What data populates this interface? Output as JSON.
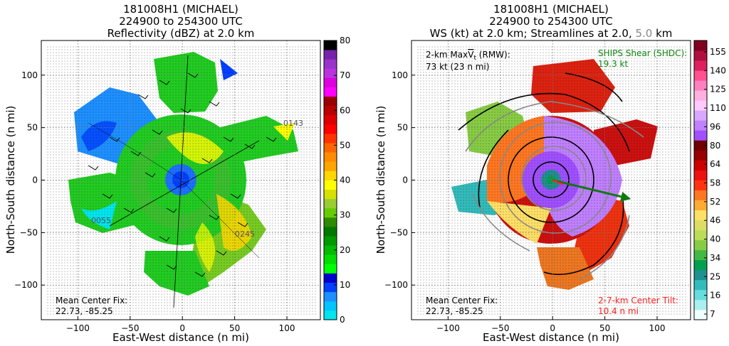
{
  "chart_data": [
    {
      "type": "heatmap",
      "title_lines": [
        "181008H1 (MICHAEL)",
        "224900 to 254300 UTC",
        "Reflectivity (dBZ) at 2.0 km"
      ],
      "xlabel": "East-West distance (n mi)",
      "ylabel": "North-South distance (n mi)",
      "xlim": [
        -135,
        132
      ],
      "ylim": [
        -133,
        133
      ],
      "xticks": [
        -100,
        -50,
        0,
        50,
        100
      ],
      "yticks": [
        -100,
        -50,
        0,
        50,
        100
      ],
      "grid": true,
      "colorbar": {
        "min": 0,
        "max": 80,
        "ticks": [
          0,
          10,
          20,
          30,
          40,
          50,
          60,
          70,
          80
        ],
        "colors": [
          "#00e5ee",
          "#00c5ff",
          "#1e90ff",
          "#0040ff",
          "#0000cd",
          "#00ff00",
          "#00dd00",
          "#00bb00",
          "#009900",
          "#007700",
          "#2e8b00",
          "#66cc00",
          "#9acd32",
          "#d7e000",
          "#ffff00",
          "#ffd700",
          "#ffa500",
          "#ff8c00",
          "#ff6600",
          "#ff3300",
          "#ff0000",
          "#dd0000",
          "#bb0000",
          "#990000",
          "#ff00ff",
          "#dd00dd",
          "#bb33dd",
          "#9933cc",
          "#7722aa",
          "#000000"
        ]
      },
      "flight_labels": [
        "0143",
        "0055",
        "0245"
      ],
      "annotations": {
        "mean_center_label": "Mean Center Fix:",
        "mean_center_value": "22.73, -85.25"
      }
    },
    {
      "type": "heatmap",
      "title_lines": [
        "181008H1 (MICHAEL)",
        "224900 to 254300 UTC",
        "WS (kt) at 2.0 km; Streamlines at 2.0, ",
        "5.0",
        " km"
      ],
      "xlabel": "East-West distance (n mi)",
      "ylabel": "North-South distance (n mi)",
      "xlim": [
        -135,
        132
      ],
      "ylim": [
        -133,
        133
      ],
      "xticks": [
        -100,
        -50,
        0,
        50,
        100
      ],
      "yticks": [
        -100,
        -50,
        0,
        50,
        100
      ],
      "grid": true,
      "colorbar": {
        "tick_labels": [
          "7",
          "16",
          "25",
          "34",
          "40",
          "46",
          "52",
          "58",
          "64",
          "80",
          "96",
          "110",
          "125",
          "140",
          "155"
        ],
        "colors": [
          "#f0ffff",
          "#aaf0f0",
          "#66dddd",
          "#33bbbb",
          "#209090",
          "#00a050",
          "#44b844",
          "#88cc44",
          "#bbdd55",
          "#dddd66",
          "#ffe066",
          "#ffaa33",
          "#ff7722",
          "#ff3311",
          "#ee1111",
          "#cc0000",
          "#990000",
          "#700000",
          "#a050ff",
          "#c080ff",
          "#d8a8ff",
          "#ffc8ff",
          "#ffb0e0",
          "#ff80c0",
          "#ff5090",
          "#dd2060",
          "#b01040",
          "#800020"
        ]
      },
      "annotations": {
        "max_wind_label": "2-km Max",
        "max_wind_suffix": " (RMW):",
        "max_wind_value": "73 kt (23 n mi)",
        "shear_label": "SHIPS Shear (SHDC):",
        "shear_value": "19.3 kt",
        "shear_vector": {
          "u": 75,
          "v": -18
        },
        "mean_center_label": "Mean Center Fix:",
        "mean_center_value": "22.73, -85.25",
        "tilt_label": "2-7-km Center Tilt:",
        "tilt_value": "10.4 n mi"
      }
    }
  ]
}
